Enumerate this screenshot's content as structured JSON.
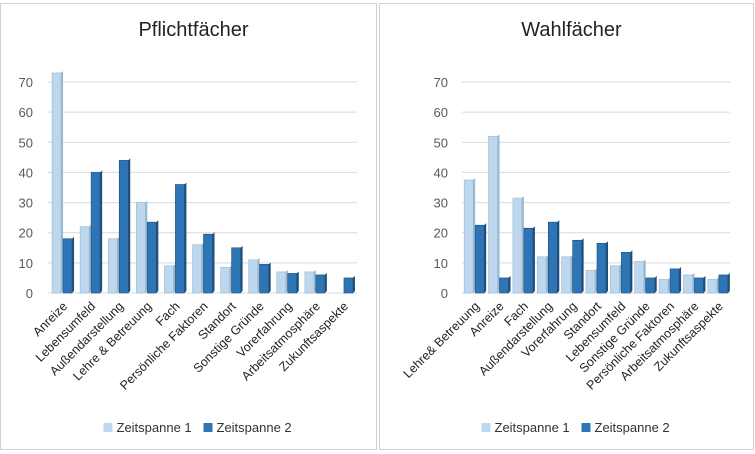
{
  "chart_data": [
    {
      "type": "bar",
      "title": "Pflichtfächer",
      "ylim": [
        0,
        70
      ],
      "yticks": [
        0,
        10,
        20,
        30,
        40,
        50,
        60,
        70
      ],
      "grid": true,
      "legend": "bottom",
      "categories": [
        "Anreize",
        "Lebensumfeld",
        "Außendarstellung",
        "Lehre & Betreuung",
        "Fach",
        "Persönliche Faktoren",
        "Standort",
        "Sonstige Gründe",
        "Vorerfahrung",
        "Arbeitsatmosphäre",
        "Zukunftsaspekte"
      ],
      "series": [
        {
          "name": "Zeitspanne 1",
          "values": [
            73,
            22,
            18,
            30,
            9,
            16,
            8.5,
            11,
            7,
            7,
            0
          ]
        },
        {
          "name": "Zeitspanne 2",
          "values": [
            18,
            40,
            44,
            23.5,
            36,
            19.5,
            15,
            9.5,
            6.5,
            6,
            5
          ]
        }
      ]
    },
    {
      "type": "bar",
      "title": "Wahlfächer",
      "ylim": [
        0,
        70
      ],
      "yticks": [
        0,
        10,
        20,
        30,
        40,
        50,
        60,
        70
      ],
      "grid": true,
      "legend": "bottom",
      "categories": [
        "Lehre& Betreuung",
        "Anreize",
        "Fach",
        "Außendarstellung",
        "Vorerfahrung",
        "Standort",
        "Lebensumfeld",
        "Sonstige Gründe",
        "Persönliche Faktoren",
        "Arbeitsatmosphäre",
        "Zukunftsaspekte"
      ],
      "series": [
        {
          "name": "Zeitspanne 1",
          "values": [
            37.5,
            52,
            31.5,
            12,
            12,
            7.5,
            9,
            10.5,
            4.5,
            6,
            4.5
          ]
        },
        {
          "name": "Zeitspanne 2",
          "values": [
            22.5,
            5,
            21.5,
            23.5,
            17.5,
            16.5,
            13.5,
            5,
            8,
            5,
            6
          ]
        }
      ]
    }
  ],
  "colors": {
    "s1": "#bdd7ee",
    "s2": "#2e75b6"
  }
}
